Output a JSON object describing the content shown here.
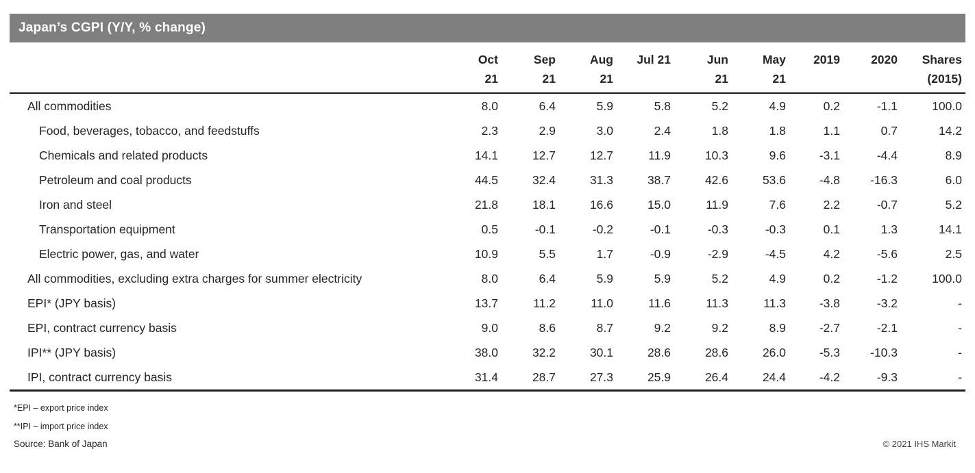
{
  "title_bar": {
    "title": "Japan’s CGPI (Y/Y, % change)",
    "bg_color": "#7f7f7f"
  },
  "table": {
    "columns": [
      {
        "id": "oct-21",
        "line1": "Oct",
        "line2": "21"
      },
      {
        "id": "sep-21",
        "line1": "Sep",
        "line2": "21"
      },
      {
        "id": "aug-21",
        "line1": "Aug",
        "line2": "21"
      },
      {
        "id": "jul-21",
        "line1": "Jul 21",
        "line2": ""
      },
      {
        "id": "jun-21",
        "line1": "Jun",
        "line2": "21"
      },
      {
        "id": "may-21",
        "line1": "May",
        "line2": "21"
      },
      {
        "id": "2019",
        "line1": "2019",
        "line2": ""
      },
      {
        "id": "2020",
        "line1": "2020",
        "line2": ""
      },
      {
        "id": "shares",
        "line1": "Shares",
        "line2": "(2015)"
      }
    ],
    "rows": [
      {
        "label": "All commodities",
        "indent": 0,
        "values": [
          "8.0",
          "6.4",
          "5.9",
          "5.8",
          "5.2",
          "4.9",
          "0.2",
          "-1.1",
          "100.0"
        ]
      },
      {
        "label": "Food, beverages, tobacco, and feedstuffs",
        "indent": 1,
        "values": [
          "2.3",
          "2.9",
          "3.0",
          "2.4",
          "1.8",
          "1.8",
          "1.1",
          "0.7",
          "14.2"
        ]
      },
      {
        "label": "Chemicals and related products",
        "indent": 1,
        "values": [
          "14.1",
          "12.7",
          "12.7",
          "11.9",
          "10.3",
          "9.6",
          "-3.1",
          "-4.4",
          "8.9"
        ]
      },
      {
        "label": "Petroleum and coal products",
        "indent": 1,
        "values": [
          "44.5",
          "32.4",
          "31.3",
          "38.7",
          "42.6",
          "53.6",
          "-4.8",
          "-16.3",
          "6.0"
        ]
      },
      {
        "label": "Iron and steel",
        "indent": 1,
        "values": [
          "21.8",
          "18.1",
          "16.6",
          "15.0",
          "11.9",
          "7.6",
          "2.2",
          "-0.7",
          "5.2"
        ]
      },
      {
        "label": "Transportation equipment",
        "indent": 1,
        "values": [
          "0.5",
          "-0.1",
          "-0.2",
          "-0.1",
          "-0.3",
          "-0.3",
          "0.1",
          "1.3",
          "14.1"
        ]
      },
      {
        "label": "Electric power, gas, and water",
        "indent": 1,
        "values": [
          "10.9",
          "5.5",
          "1.7",
          "-0.9",
          "-2.9",
          "-4.5",
          "4.2",
          "-5.6",
          "2.5"
        ]
      },
      {
        "label": "All commodities, excluding extra charges for summer electricity",
        "indent": 0,
        "values": [
          "8.0",
          "6.4",
          "5.9",
          "5.9",
          "5.2",
          "4.9",
          "0.2",
          "-1.2",
          "100.0"
        ]
      },
      {
        "label": "EPI* (JPY basis)",
        "indent": 0,
        "values": [
          "13.7",
          "11.2",
          "11.0",
          "11.6",
          "11.3",
          "11.3",
          "-3.8",
          "-3.2",
          "-"
        ]
      },
      {
        "label": "EPI, contract currency basis",
        "indent": 0,
        "values": [
          "9.0",
          "8.6",
          "8.7",
          "9.2",
          "9.2",
          "8.9",
          "-2.7",
          "-2.1",
          "-"
        ]
      },
      {
        "label": "IPI** (JPY basis)",
        "indent": 0,
        "values": [
          "38.0",
          "32.2",
          "30.1",
          "28.6",
          "28.6",
          "26.0",
          "-5.3",
          "-10.3",
          "-"
        ]
      },
      {
        "label": "IPI, contract currency basis",
        "indent": 0,
        "values": [
          "31.4",
          "28.7",
          "27.3",
          "25.9",
          "26.4",
          "24.4",
          "-4.2",
          "-9.3",
          "-"
        ]
      }
    ]
  },
  "footnotes": [
    "*EPI – export price index",
    "**IPI – import price index",
    "Source: Bank of Japan"
  ],
  "copyright": "© 2021 IHS Markit"
}
